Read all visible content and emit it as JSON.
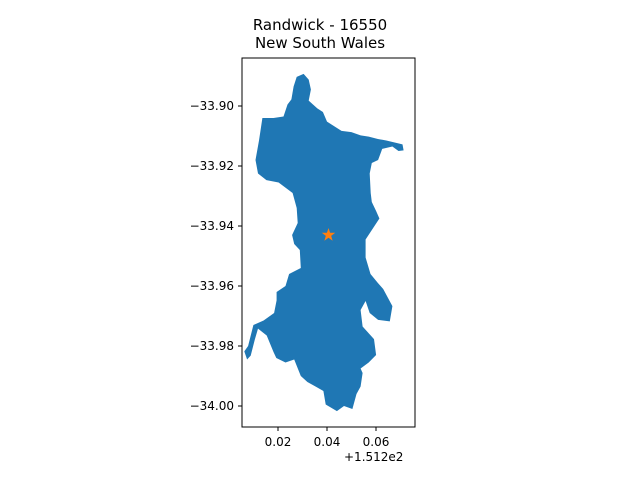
{
  "title": {
    "line1": "Randwick - 16550",
    "line2": "New South Wales"
  },
  "axis": {
    "x_offset_label": "+1.512e2",
    "x_ticks": [
      "0.02",
      "0.04",
      "0.06"
    ],
    "y_ticks": [
      "−33.90",
      "−33.92",
      "−33.94",
      "−33.96",
      "−33.98",
      "−34.00"
    ]
  },
  "colors": {
    "region_fill": "#1f77b4",
    "marker_fill": "#ff7f0e",
    "axis": "#000000"
  },
  "marker": {
    "icon": "star-icon",
    "lon": 151.2405,
    "lat": -33.943
  },
  "chart_data": {
    "type": "map",
    "title": "Randwick - 16550\nNew South Wales",
    "xlim": [
      151.2065,
      151.2745
    ],
    "ylim": [
      -34.007,
      -33.884
    ],
    "x_ticks": [
      0.02,
      0.04,
      0.06
    ],
    "x_offset": "+1.512e2",
    "y_ticks": [
      -33.9,
      -33.92,
      -33.94,
      -33.96,
      -33.98,
      -34.0
    ],
    "grid": false,
    "region": {
      "fill": "#1f77b4",
      "outline": [
        [
          151.228,
          -33.8903
        ],
        [
          151.2307,
          -33.8893
        ],
        [
          151.2327,
          -33.8912
        ],
        [
          151.2336,
          -33.8945
        ],
        [
          151.2327,
          -33.8982
        ],
        [
          151.2361,
          -33.9008
        ],
        [
          151.2383,
          -33.902
        ],
        [
          151.2399,
          -33.9052
        ],
        [
          151.2456,
          -33.9083
        ],
        [
          151.2495,
          -33.9087
        ],
        [
          151.2531,
          -33.9098
        ],
        [
          151.2563,
          -33.9102
        ],
        [
          151.2599,
          -33.911
        ],
        [
          151.2632,
          -33.9115
        ],
        [
          151.2696,
          -33.9128
        ],
        [
          151.27,
          -33.9148
        ],
        [
          151.268,
          -33.915
        ],
        [
          151.2656,
          -33.9135
        ],
        [
          151.2616,
          -33.9143
        ],
        [
          151.26,
          -33.918
        ],
        [
          151.2575,
          -33.919
        ],
        [
          151.2567,
          -33.9225
        ],
        [
          151.2571,
          -33.929
        ],
        [
          151.2575,
          -33.932
        ],
        [
          151.2592,
          -33.935
        ],
        [
          151.2605,
          -33.9375
        ],
        [
          151.2578,
          -33.941
        ],
        [
          151.2551,
          -33.9445
        ],
        [
          151.2551,
          -33.9505
        ],
        [
          151.257,
          -33.956
        ],
        [
          151.2599,
          -33.959
        ],
        [
          151.262,
          -33.961
        ],
        [
          151.2656,
          -33.9667
        ],
        [
          151.2646,
          -33.9718
        ],
        [
          151.26,
          -33.9713
        ],
        [
          151.2567,
          -33.969
        ],
        [
          151.2551,
          -33.965
        ],
        [
          151.2531,
          -33.968
        ],
        [
          151.2539,
          -33.9735
        ],
        [
          151.2584,
          -33.9777
        ],
        [
          151.2592,
          -33.983
        ],
        [
          151.2563,
          -33.9855
        ],
        [
          151.2531,
          -33.9875
        ],
        [
          151.2539,
          -33.989
        ],
        [
          151.2531,
          -33.9935
        ],
        [
          151.2515,
          -33.996
        ],
        [
          151.2499,
          -34.001
        ],
        [
          151.2466,
          -34.0
        ],
        [
          151.2438,
          -34.0017
        ],
        [
          151.2394,
          -33.9995
        ],
        [
          151.2385,
          -33.995
        ],
        [
          151.2354,
          -33.9935
        ],
        [
          151.2322,
          -33.992
        ],
        [
          151.2296,
          -33.99
        ],
        [
          151.227,
          -33.9845
        ],
        [
          151.2236,
          -33.9855
        ],
        [
          151.22,
          -33.984
        ],
        [
          151.2189,
          -33.982
        ],
        [
          151.2162,
          -33.9765
        ],
        [
          151.2128,
          -33.9742
        ],
        [
          151.2115,
          -33.978
        ],
        [
          151.2099,
          -33.9832
        ],
        [
          151.2085,
          -33.9845
        ],
        [
          151.2074,
          -33.9818
        ],
        [
          151.2089,
          -33.98
        ],
        [
          151.211,
          -33.973
        ],
        [
          151.215,
          -33.9715
        ],
        [
          151.2191,
          -33.969
        ],
        [
          151.2201,
          -33.9648
        ],
        [
          151.2201,
          -33.962
        ],
        [
          151.2236,
          -33.96
        ],
        [
          151.225,
          -33.956
        ],
        [
          151.2296,
          -33.954
        ],
        [
          151.2292,
          -33.948
        ],
        [
          151.227,
          -33.946
        ],
        [
          151.2262,
          -33.943
        ],
        [
          151.2284,
          -33.939
        ],
        [
          151.228,
          -33.934
        ],
        [
          151.2264,
          -33.929
        ],
        [
          151.2209,
          -33.9255
        ],
        [
          151.2161,
          -33.9247
        ],
        [
          151.2128,
          -33.9225
        ],
        [
          151.2118,
          -33.918
        ],
        [
          151.2132,
          -33.9115
        ],
        [
          151.2145,
          -33.904
        ],
        [
          151.2189,
          -33.904
        ],
        [
          151.2228,
          -33.9035
        ],
        [
          151.2244,
          -33.8995
        ],
        [
          151.2259,
          -33.8978
        ],
        [
          151.2268,
          -33.8935
        ]
      ]
    },
    "marker": {
      "type": "star",
      "x": 151.2405,
      "y": -33.943,
      "color": "#ff7f0e"
    }
  }
}
